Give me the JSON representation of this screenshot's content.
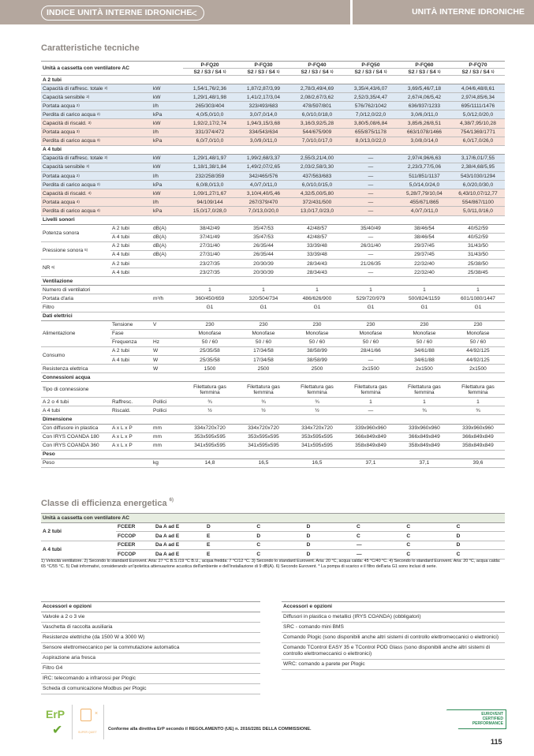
{
  "header": {
    "index_label": "INDICE UNITÀ INTERNE IDRONICHE",
    "section_title": "UNITÀ INTERNE IDRONICHE",
    "color": "#b4a79e"
  },
  "specs": {
    "title": "Caratteristiche tecniche",
    "main_label": "Unità a cassetta con ventilatore AC",
    "columns": [
      {
        "model": "P-FQ20",
        "speeds": "S2 / S3 / S4",
        "sup": "1)"
      },
      {
        "model": "P-FQ30",
        "speeds": "S2 / S3 / S4",
        "sup": "1)"
      },
      {
        "model": "P-FQ40",
        "speeds": "S2 / S3 / S4",
        "sup": "1)"
      },
      {
        "model": "P-FQ50",
        "speeds": "S2 / S3 / S4",
        "sup": "1)"
      },
      {
        "model": "P-FQ60",
        "speeds": "S2 / S3 / S4",
        "sup": "1)"
      },
      {
        "model": "P-FQ70",
        "speeds": "S2 / S3 / S4",
        "sup": "1)"
      }
    ],
    "rows": [
      {
        "type": "section",
        "label": "A 2 tubi"
      },
      {
        "label": "Capacità di raffresc. totale",
        "sup": "2)",
        "unit": "kW",
        "tint": "cool",
        "values": [
          "1,54/1,76/2,36",
          "1,87/2,87/3,99",
          "2,78/3,49/4,69",
          "3,35/4,43/6,07",
          "3,69/5,46/7,18",
          "4,04/6,48/8,61"
        ]
      },
      {
        "label": "Capacità sensibile",
        "sup": "2)",
        "unit": "kW",
        "tint": "cool",
        "values": [
          "1,29/1,48/1,98",
          "1,41/2,17/3,04",
          "2,08/2,67/3,62",
          "2,52/3,35/4,47",
          "2,67/4,06/5,42",
          "2,97/4,85/6,34"
        ]
      },
      {
        "label": "Portata acqua",
        "sup": "2)",
        "unit": "l/h",
        "tint": "cool",
        "values": [
          "265/303/404",
          "323/493/683",
          "478/597/801",
          "576/762/1042",
          "636/937/1233",
          "695/1111/1476"
        ]
      },
      {
        "label": "Perdita di carico acqua",
        "sup": "2)",
        "unit": "kPa",
        "tint": "cool",
        "values": [
          "4,0/5,0/10,0",
          "3,0/7,0/14,0",
          "6,0/10,0/18,0",
          "7,0/12,0/22,0",
          "3,0/6,0/11,0",
          "5,0/12,0/20,0"
        ]
      },
      {
        "label": "Capacità di riscald.",
        "sup": "3)",
        "unit": "kW",
        "tint": "heat",
        "values": [
          "1,92/2,17/2,74",
          "1,94/3,15/3,68",
          "3,16/3,92/5,28",
          "3,80/5,08/6,84",
          "3,85/6,26/8,51",
          "4,38/7,95/10,28"
        ]
      },
      {
        "label": "Portata acqua",
        "sup": "3)",
        "unit": "l/h",
        "tint": "heat",
        "values": [
          "331/374/472",
          "334/543/634",
          "544/675/909",
          "655/875/1178",
          "663/1078/1466",
          "754/1369/1771"
        ]
      },
      {
        "label": "Perdita di carico acqua",
        "sup": "3)",
        "unit": "kPa",
        "tint": "heat",
        "values": [
          "6,0/7,0/10,0",
          "3,0/9,0/11,0",
          "7,0/10,0/17,0",
          "8,0/13,0/22,0",
          "3,0/8,0/14,0",
          "6,0/17,0/26,0"
        ]
      },
      {
        "type": "section",
        "label": "A 4 tubi"
      },
      {
        "label": "Capacità di raffresc. totale",
        "sup": "2)",
        "unit": "kW",
        "tint": "cool",
        "values": [
          "1,29/1,48/1,97",
          "1,99/2,68/3,37",
          "2,55/3,21/4,00",
          "—",
          "2,97/4,96/6,63",
          "3,17/6,01/7,55"
        ]
      },
      {
        "label": "Capacità sensibile",
        "sup": "2)",
        "unit": "kW",
        "tint": "cool",
        "values": [
          "1,18/1,38/1,84",
          "1,49/2,07/2,65",
          "2,03/2,58/3,30",
          "—",
          "2,23/3,77/5,06",
          "2,38/4,68/5,95"
        ]
      },
      {
        "label": "Portata acqua",
        "sup": "2)",
        "unit": "l/h",
        "tint": "cool",
        "values": [
          "232/258/359",
          "342/465/576",
          "437/563/683",
          "—",
          "511/851/1137",
          "543/1030/1294"
        ]
      },
      {
        "label": "Perdita di carico acqua",
        "sup": "2)",
        "unit": "kPa",
        "tint": "cool",
        "values": [
          "6,0/8,0/13,0",
          "4,0/7,0/11,0",
          "6,0/10,0/15,0",
          "—",
          "5,0/14,0/24,0",
          "6,0/20,0/30,0"
        ]
      },
      {
        "label": "Capacità di riscald.",
        "sup": "4)",
        "unit": "kW",
        "tint": "heat",
        "values": [
          "1,09/1,27/1,67",
          "3,10/4,40/5,46",
          "4,32/5,00/5,80",
          "—",
          "5,28/7,79/10,04",
          "6,43/10,07/12,77"
        ]
      },
      {
        "label": "Portata acqua",
        "sup": "4)",
        "unit": "l/h",
        "tint": "heat",
        "values": [
          "94/109/144",
          "267/379/470",
          "372/431/500",
          "—",
          "455/671/865",
          "554/867/1100"
        ]
      },
      {
        "label": "Perdita di carico acqua",
        "sup": "4)",
        "unit": "kPa",
        "tint": "heat",
        "values": [
          "15,0/17,0/28,0",
          "7,0/13,0/20,0",
          "13,0/17,0/23,0",
          "—",
          "4,0/7,0/11,0",
          "5,0/11,0/16,0"
        ]
      },
      {
        "type": "section",
        "label": "Livelli sonori"
      },
      {
        "type": "group",
        "label": "Potenza sonora",
        "rows": [
          {
            "sub": "A 2 tubi",
            "unit": "dB(A)",
            "values": [
              "38/42/49",
              "35/47/53",
              "42/48/57",
              "35/40/49",
              "38/46/54",
              "40/52/59"
            ]
          },
          {
            "sub": "A 4 tubi",
            "unit": "dB(A)",
            "values": [
              "37/41/49",
              "35/47/53",
              "42/48/57",
              "—",
              "38/46/54",
              "40/52/59"
            ]
          }
        ]
      },
      {
        "type": "group",
        "label": "Pressione sonora",
        "sup": "5)",
        "rows": [
          {
            "sub": "A 2 tubi",
            "unit": "dB(A)",
            "values": [
              "27/31/40",
              "26/35/44",
              "33/39/48",
              "26/31/40",
              "29/37/45",
              "31/43/50"
            ]
          },
          {
            "sub": "A 4 tubi",
            "unit": "dB(A)",
            "values": [
              "27/31/40",
              "26/35/44",
              "33/39/48",
              "—",
              "29/37/45",
              "31/43/50"
            ]
          }
        ]
      },
      {
        "type": "group",
        "label": "NR",
        "sup": "6)",
        "rows": [
          {
            "sub": "A 2 tubi",
            "unit": "",
            "values": [
              "23/27/35",
              "20/30/39",
              "28/34/43",
              "21/26/35",
              "22/32/40",
              "25/38/50"
            ]
          },
          {
            "sub": "A 4 tubi",
            "unit": "",
            "values": [
              "23/27/35",
              "20/30/39",
              "28/34/43",
              "—",
              "22/32/40",
              "25/38/45"
            ]
          }
        ]
      },
      {
        "type": "section",
        "label": "Ventilazione"
      },
      {
        "label": "Numero di ventilatori",
        "unit": "",
        "values": [
          "1",
          "1",
          "1",
          "1",
          "1",
          "1"
        ]
      },
      {
        "label": "Portata d'aria",
        "unit": "m³/h",
        "values": [
          "360/450/659",
          "320/504/734",
          "486/626/900",
          "529/720/979",
          "500/824/1159",
          "601/1080/1447"
        ]
      },
      {
        "label": "Filtro",
        "unit": "",
        "values": [
          "G1",
          "G1",
          "G1",
          "G1",
          "G1",
          "G1"
        ]
      },
      {
        "type": "section",
        "label": "Dati elettrici"
      },
      {
        "type": "group",
        "label": "Alimentazione",
        "rows": [
          {
            "sub": "Tensione",
            "unit": "V",
            "values": [
              "230",
              "230",
              "230",
              "230",
              "230",
              "230"
            ]
          },
          {
            "sub": "Fase",
            "unit": "",
            "values": [
              "Monofase",
              "Monofase",
              "Monofase",
              "Monofase",
              "Monofase",
              "Monofase"
            ]
          },
          {
            "sub": "Frequenza",
            "unit": "Hz",
            "values": [
              "50 / 60",
              "50 / 60",
              "50 / 60",
              "50 / 60",
              "50 / 60",
              "50 / 60"
            ]
          }
        ]
      },
      {
        "type": "group",
        "label": "Consumo",
        "rows": [
          {
            "sub": "A 2 tubi",
            "unit": "W",
            "values": [
              "25/35/58",
              "17/34/58",
              "38/58/99",
              "28/41/66",
              "34/61/88",
              "44/92/125"
            ]
          },
          {
            "sub": "A 4 tubi",
            "unit": "W",
            "values": [
              "25/35/58",
              "17/34/58",
              "38/58/99",
              "—",
              "34/61/88",
              "44/92/125"
            ]
          }
        ]
      },
      {
        "label": "Resistenza elettrica",
        "unit": "W",
        "values": [
          "1500",
          "2500",
          "2500",
          "2x1500",
          "2x1500",
          "2x1500"
        ]
      },
      {
        "type": "section",
        "label": "Connessioni acqua"
      },
      {
        "label": "Tipo di connessione",
        "unit": "",
        "wrap": true,
        "values": [
          "Filettatura gas femmina",
          "Filettatura gas femmina",
          "Filettatura gas femmina",
          "Filettatura gas femmina",
          "Filettatura gas femmina",
          "Filettatura gas femmina"
        ]
      },
      {
        "label": "A 2 o 4 tubi",
        "sub": "Raffresc.",
        "unit": "Pollici",
        "values": [
          "¾",
          "¾",
          "¾",
          "1",
          "1",
          "1"
        ]
      },
      {
        "label": "A 4 tubi",
        "sub": "Riscald.",
        "unit": "Pollici",
        "values": [
          "½",
          "½",
          "½",
          "—",
          "¾",
          "¾"
        ]
      },
      {
        "type": "section",
        "label": "Dimensione"
      },
      {
        "label": "Con diffusore in plastica",
        "sub": "A x L x P",
        "unit": "mm",
        "values": [
          "334x720x720",
          "334x720x720",
          "334x720x720",
          "339x960x960",
          "339x960x960",
          "339x960x960"
        ]
      },
      {
        "label": "Con IRYS COANDA 180",
        "sub": "A x L x P",
        "unit": "mm",
        "values": [
          "353x595x595",
          "353x595x595",
          "353x595x595",
          "366x849x849",
          "366x849x849",
          "366x849x849"
        ]
      },
      {
        "label": "Con IRYS COANDA 360",
        "sub": "A x L x P",
        "unit": "mm",
        "values": [
          "341x595x595",
          "341x595x595",
          "341x595x595",
          "358x849x849",
          "358x849x849",
          "358x849x849"
        ]
      },
      {
        "type": "section",
        "label": "Peso"
      },
      {
        "label": "Peso",
        "unit": "kg",
        "values": [
          "14,8",
          "16,5",
          "16,5",
          "37,1",
          "37,1",
          "39,6"
        ]
      }
    ],
    "colors": {
      "cooling": "#dfe9f3",
      "heating": "#f8e2da"
    }
  },
  "efficiency": {
    "title": "Classe di efficienza energetica",
    "title_sup": "6)",
    "header": "Unità a cassetta con ventilatore AC",
    "groups": [
      {
        "label": "A 2 tubi",
        "rows": [
          {
            "metric": "FCEER",
            "range": "Da A ad E",
            "values": [
              "D",
              "C",
              "D",
              "C",
              "C",
              "C"
            ]
          },
          {
            "metric": "FCCOP",
            "range": "Da A ad E",
            "values": [
              "E",
              "D",
              "D",
              "C",
              "C",
              "D"
            ]
          }
        ]
      },
      {
        "label": "A 4 tubi",
        "rows": [
          {
            "metric": "FCEER",
            "range": "Da A ad E",
            "values": [
              "E",
              "C",
              "D",
              "—",
              "C",
              "D"
            ]
          },
          {
            "metric": "FCCOP",
            "range": "Da A ad E",
            "values": [
              "E",
              "C",
              "D",
              "—",
              "C",
              "C"
            ]
          }
        ]
      }
    ]
  },
  "notes": "1) Velocità ventilatore. 2) Secondo lo standard Eurovent. Aria: 27 °C B.S./19 °C B.U., acqua fredda: 7 °C/12 °C. 3) Secondo lo standard Eurovent. Aria: 20 °C, acqua calda: 45 °C/40 °C. 4) Secondo lo standard Eurovent. Aria: 20 °C, acqua calda: 65 °C/55 °C. 5) Dati informativi, considerando un'ipotetica attenuazione acustica dell'ambiente e dell'installazione di 9 dB(A). 6) Secondo Eurovent. * La pompa di scarico e il filtro dell'aria G1 sono inclusi di serie.",
  "accessories_left": {
    "title": "Accessori e opzioni",
    "items": [
      "Valvole a 2 o 3 vie",
      "Vaschetta di raccolta ausiliaria",
      "Resistenze elettriche (da 1500 W a 3000 W)",
      "Sensore elettromeccanico per la commutazione automatica",
      "Aspirazione aria fresca",
      "Filtro G4",
      "IRC: telecomando a infrarossi per Plogic",
      "Scheda di comunicazione Modbus per Plogic"
    ]
  },
  "accessories_right": {
    "title": "Accessori e opzioni",
    "items": [
      "Diffusori in plastica o metallici (IRYS COANDA) (obbligatori)",
      "SRC - comando mini BMS",
      "Comando Plogic (sono disponibili anche altri sistemi di controllo elettromeccanici o elettronici)",
      "Comando TControl EASY 35 e TControl POD Glass (sono disponibili anche altri sistemi di controllo elettromeccanici o elettronici)",
      "WRC: comando a parete per Plogic"
    ]
  },
  "footer": {
    "erp_logo": "ErP",
    "quiet_logo": "SUPER QUIET",
    "compliance": "Conforme alla direttiva ErP secondo il REGOLAMENTO (UE) n. 2016/2281 DELLA COMMISSIONE.",
    "eurovent_logo": "EUROVENT CERTIFIED PERFORMANCE",
    "page_number": "115"
  }
}
